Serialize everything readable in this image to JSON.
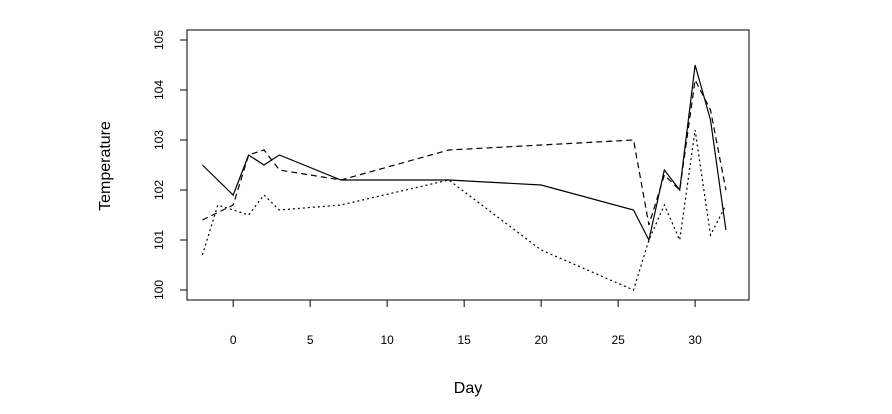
{
  "chart_data": {
    "type": "line",
    "xlabel": "Day",
    "ylabel": "Temperature",
    "xlim": [
      -3,
      33.5
    ],
    "ylim": [
      99.8,
      105.2
    ],
    "xticks": [
      0,
      5,
      10,
      15,
      20,
      25,
      30
    ],
    "yticks": [
      100,
      101,
      102,
      103,
      104,
      105
    ],
    "grid": false,
    "series": [
      {
        "style": "solid",
        "x": [
          -2,
          0,
          1,
          2,
          3,
          7,
          14,
          20,
          26,
          27,
          28,
          29,
          30,
          31,
          32
        ],
        "y": [
          102.5,
          101.9,
          102.7,
          102.5,
          102.7,
          102.2,
          102.2,
          102.1,
          101.6,
          101.0,
          102.4,
          102.0,
          104.5,
          103.4,
          101.2
        ]
      },
      {
        "style": "dashed",
        "x": [
          -2,
          0,
          1,
          2,
          3,
          7,
          14,
          20,
          26,
          27,
          28,
          29,
          30,
          31,
          32
        ],
        "y": [
          101.4,
          101.7,
          102.7,
          102.8,
          102.4,
          102.2,
          102.8,
          102.9,
          103.0,
          101.3,
          102.3,
          102.0,
          104.2,
          103.6,
          102.0
        ]
      },
      {
        "style": "dotted",
        "x": [
          -2,
          -1,
          0,
          1,
          2,
          3,
          7,
          14,
          20,
          26,
          27,
          28,
          29,
          30,
          31,
          32
        ],
        "y": [
          100.7,
          101.7,
          101.6,
          101.5,
          101.9,
          101.6,
          101.7,
          102.2,
          100.8,
          100.0,
          101.0,
          101.7,
          101.0,
          103.2,
          101.1,
          101.7
        ]
      }
    ]
  }
}
